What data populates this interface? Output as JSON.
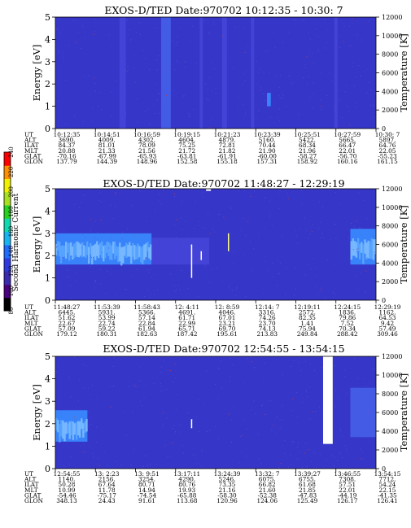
{
  "colorbar": {
    "label": "Second Harmonic Current",
    "ticks": [
      80,
      100,
      120,
      140,
      160,
      180,
      200,
      220,
      240
    ],
    "colors": [
      "#000000",
      "#4b0082",
      "#3a2ab0",
      "#2d3ae0",
      "#1f6cff",
      "#18b4f0",
      "#10d8b0",
      "#28d020",
      "#a8e020",
      "#f0f000",
      "#ff9000",
      "#ff0000"
    ]
  },
  "colors": {
    "background": "#3636c8",
    "speckle": "#5050e0",
    "bright": "#80c0ff",
    "hot": "#d04040",
    "white": "#ffffff",
    "yellow": "#ffff80"
  },
  "chart_data": [
    {
      "type": "heatmap",
      "title": "EXOS-D/TED   Date:970702   10:12:35 - 10:30: 7",
      "ylabel": "Energy [eV]",
      "ylabel_right": "Temperature [K]",
      "ylim": [
        0,
        5
      ],
      "ylim_right": [
        0,
        12000
      ],
      "yticks": [
        "0",
        "1",
        "2",
        "3",
        "4",
        "5"
      ],
      "yticks_right": [
        "0",
        "2000",
        "4000",
        "6000",
        "8000",
        "10000",
        "12000"
      ],
      "features": [
        {
          "t": 0.2,
          "width": 0.02,
          "e0": 0,
          "e1": 5,
          "intensity": 0.5
        },
        {
          "t": 0.33,
          "width": 0.03,
          "e0": 0,
          "e1": 5,
          "intensity": 0.6
        },
        {
          "t": 0.45,
          "width": 0.01,
          "e0": 0,
          "e1": 5,
          "intensity": 0.45
        },
        {
          "t": 0.52,
          "width": 0.015,
          "e0": 0,
          "e1": 5,
          "intensity": 0.45
        },
        {
          "t": 0.61,
          "width": 0.01,
          "e0": 0,
          "e1": 5,
          "intensity": 0.4
        },
        {
          "t": 0.66,
          "width": 0.012,
          "e0": 1.0,
          "e1": 1.6,
          "intensity": 1.0
        },
        {
          "t": 0.87,
          "width": 0.01,
          "e0": 0,
          "e1": 5,
          "intensity": 0.4
        }
      ],
      "table": {
        "rows": [
          {
            "label": "UT",
            "values": [
              "10:12:35",
              "10:14:51",
              "10:16:59",
              "10:19:15",
              "10:21:23",
              "10:23:39",
              "10:25:51",
              "10:27:59",
              "10:30: 7"
            ]
          },
          {
            "label": "ALT",
            "values": [
              "3690.",
              "4009.",
              "4302.",
              "4604.",
              "4879.",
              "5160.",
              "5422.",
              "5665.",
              "5897."
            ]
          },
          {
            "label": "ILAT",
            "values": [
              "84.37",
              "81.01",
              "78.09",
              "75.25",
              "72.81",
              "70.44",
              "68.34",
              "66.47",
              "64.76"
            ]
          },
          {
            "label": "MLT",
            "values": [
              "20.88",
              "21.33",
              "21.56",
              "21.72",
              "21.82",
              "21.90",
              "21.96",
              "22.01",
              "22.05"
            ]
          },
          {
            "label": "GLAT",
            "values": [
              "-70.16",
              "-67.99",
              "-65.93",
              "-63.81",
              "-61.91",
              "-60.00",
              "-58.27",
              "-56.70",
              "-55.23"
            ]
          },
          {
            "label": "GLON",
            "values": [
              "137.79",
              "144.39",
              "148.96",
              "152.58",
              "155.18",
              "157.31",
              "158.92",
              "160.16",
              "161.15"
            ]
          }
        ]
      }
    },
    {
      "type": "heatmap",
      "title": "EXOS-D/TED   Date:970702   11:48:27 - 12:29:19",
      "ylabel": "Energy [eV]",
      "ylabel_right": "Temperature [K]",
      "ylim": [
        0,
        5
      ],
      "ylim_right": [
        0,
        12000
      ],
      "yticks": [
        "0",
        "1",
        "2",
        "3",
        "4",
        "5"
      ],
      "yticks_right": [
        "0",
        "2000",
        "4000",
        "6000",
        "8000",
        "10000",
        "12000"
      ],
      "features": [
        {
          "t": 0.0,
          "width": 0.3,
          "e0": 1.6,
          "e1": 3.0,
          "intensity": 1.0
        },
        {
          "t": 0.3,
          "width": 0.18,
          "e0": 1.6,
          "e1": 2.8,
          "intensity": 0.55
        },
        {
          "t": 0.47,
          "width": 0.015,
          "e0": 4.9,
          "e1": 5.0,
          "intensity": 1.2
        },
        {
          "t": 0.92,
          "width": 0.08,
          "e0": 1.6,
          "e1": 3.2,
          "intensity": 0.9
        }
      ],
      "traces": [
        {
          "t": 0.425,
          "e0": 1.0,
          "e1": 2.5,
          "color": "white"
        },
        {
          "t": 0.54,
          "e0": 2.2,
          "e1": 3.0,
          "color": "yellow"
        },
        {
          "t": 0.455,
          "e0": 1.8,
          "e1": 2.2,
          "color": "white"
        }
      ],
      "table": {
        "rows": [
          {
            "label": "UT",
            "values": [
              "11:48:27",
              "11:53:39",
              "11:58:43",
              "12: 4:11",
              "12: 8:59",
              "12:14: 7",
              "12:19:11",
              "12:24:15",
              "12:29:19"
            ]
          },
          {
            "label": "ALT",
            "values": [
              "6445.",
              "5931.",
              "5366.",
              "4691.",
              "4046.",
              "3316.",
              "2572.",
              "1836.",
              "1162."
            ]
          },
          {
            "label": "ILAT",
            "values": [
              "51.62",
              "53.99",
              "57.14",
              "61.71",
              "67.01",
              "74.26",
              "82.35",
              "79.86",
              "64.53"
            ]
          },
          {
            "label": "MLT",
            "values": [
              "22.67",
              "22.74",
              "22.84",
              "22.99",
              "23.21",
              "23.70",
              "1.41",
              "7.52",
              "9.42"
            ]
          },
          {
            "label": "GLAT",
            "values": [
              "57.09",
              "59.22",
              "61.94",
              "65.71",
              "69.70",
              "74.13",
              "75.94",
              "70.34",
              "57.49"
            ]
          },
          {
            "label": "GLON",
            "values": [
              "179.12",
              "180.31",
              "182.63",
              "187.42",
              "195.61",
              "213.83",
              "249.84",
              "288.42",
              "309.46"
            ]
          }
        ]
      }
    },
    {
      "type": "heatmap",
      "title": "EXOS-D/TED   Date:970702   12:54:55 - 13:54:15",
      "ylabel": "Energy [eV]",
      "ylabel_right": "Temperature [K]",
      "ylim": [
        0,
        5
      ],
      "ylim_right": [
        0,
        12000
      ],
      "yticks": [
        "0",
        "1",
        "2",
        "3",
        "4",
        "5"
      ],
      "yticks_right": [
        "0",
        "2000",
        "4000",
        "6000",
        "8000",
        "10000",
        "12000"
      ],
      "features": [
        {
          "t": 0.0,
          "width": 0.1,
          "e0": 1.2,
          "e1": 2.6,
          "intensity": 1.0
        },
        {
          "t": 0.92,
          "width": 0.08,
          "e0": 1.4,
          "e1": 3.6,
          "intensity": 0.6
        }
      ],
      "gap": {
        "t0": 0.835,
        "t1": 0.865
      },
      "traces": [
        {
          "t": 0.425,
          "e0": 1.8,
          "e1": 2.2,
          "color": "white"
        }
      ],
      "table": {
        "rows": [
          {
            "label": "UT",
            "values": [
              "12:54:55",
              "13: 2:23",
              "13: 9:51",
              "13:17:11",
              "13:24:39",
              "13:32: 7",
              "13:39:27",
              "13:46:55",
              "13:54:15"
            ]
          },
          {
            "label": "ALT",
            "values": [
              "1140.",
              "2156.",
              "3254.",
              "4290.",
              "5246.",
              "6075.",
              "6755.",
              "7308.",
              "7712."
            ]
          },
          {
            "label": "ILAT",
            "values": [
              "50.28",
              "67.64",
              "80.71",
              "80.76",
              "73.35",
              "66.82",
              "61.68",
              "57.51",
              "54.24"
            ]
          },
          {
            "label": "MLT",
            "values": [
              "10.99",
              "11.78",
              "14.94",
              "19.93",
              "21.16",
              "21.60",
              "21.85",
              "22.01",
              "22.15"
            ]
          },
          {
            "label": "GLAT",
            "values": [
              "-54.46",
              "-75.17",
              "-74.54",
              "-65.88",
              "-58.30",
              "-52.38",
              "-47.83",
              "-44.19",
              "-41.35"
            ]
          },
          {
            "label": "GLON",
            "values": [
              "348.13",
              "24.43",
              "91.61",
              "113.68",
              "120.96",
              "124.06",
              "125.49",
              "126.17",
              "126.41"
            ]
          }
        ]
      }
    }
  ]
}
